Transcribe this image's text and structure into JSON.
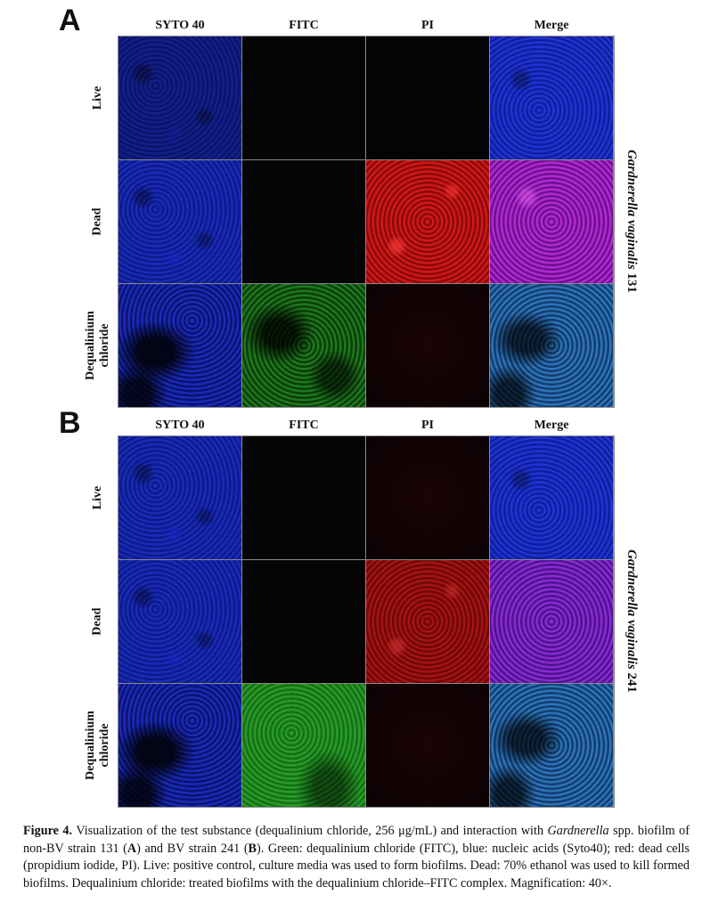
{
  "panels": [
    {
      "letter": "A",
      "columns": [
        "SYTO 40",
        "FITC",
        "PI",
        "Merge"
      ],
      "rows": [
        {
          "label": "Live"
        },
        {
          "label": "Dead"
        },
        {
          "label_line1": "Dequalinium",
          "label_line2": "chloride"
        }
      ],
      "strain_italic": "Gardnerella vaginalis",
      "strain_number": "131"
    },
    {
      "letter": "B",
      "columns": [
        "SYTO 40",
        "FITC",
        "PI",
        "Merge"
      ],
      "rows": [
        {
          "label": "Live"
        },
        {
          "label": "Dead"
        },
        {
          "label_line1": "Dequalinium",
          "label_line2": "chloride"
        }
      ],
      "strain_italic": "Gardnerella vaginalis",
      "strain_number": "241"
    }
  ],
  "caption": {
    "label": "Figure 4.",
    "part1": " Visualization of the test substance (dequalinium chloride, 256 μg/mL) and interaction with ",
    "italic1": "Gardnerella",
    "part2": " spp. biofilm of non-BV strain 131 (",
    "bold_a": "A",
    "part3": ") and BV strain 241 (",
    "bold_b": "B",
    "part4": "). Green: dequalinium chloride (FITC), blue: nucleic acids (Syto40); red: dead cells (propidium iodide, PI). Live: positive control, culture media was used to form biofilms. Dead: 70% ethanol was used to kill formed biofilms. Dequalinium chloride: treated biofilms with the dequalinium chloride–FITC complex. Magnification: 40×."
  }
}
